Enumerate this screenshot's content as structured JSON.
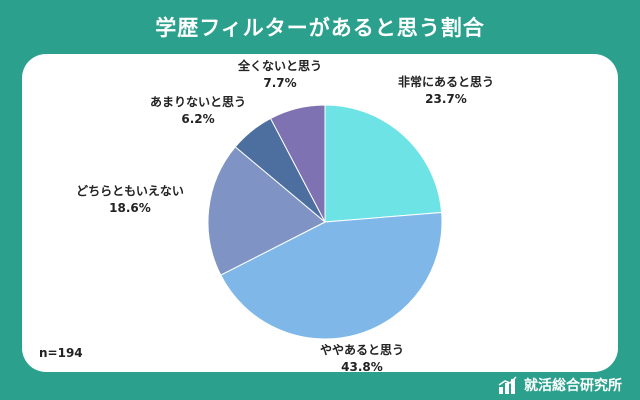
{
  "title": "学歴フィルターがあると思う割合",
  "sample_size_label": "n=194",
  "footer_brand": "就活総合研究所",
  "chart_data": {
    "type": "pie",
    "title": "学歴フィルターがあると思う割合",
    "start": "12 o'clock",
    "direction": "clockwise",
    "slices": [
      {
        "label": "非常にあると思う",
        "value": 23.7,
        "display": "23.7%",
        "color": "#6de3e6"
      },
      {
        "label": "ややあると思う",
        "value": 43.8,
        "display": "43.8%",
        "color": "#7fb8e8"
      },
      {
        "label": "どちらともいえない",
        "value": 18.6,
        "display": "18.6%",
        "color": "#7f94c4"
      },
      {
        "label": "あまりないと思う",
        "value": 6.2,
        "display": "6.2%",
        "color": "#4d6fa0"
      },
      {
        "label": "全くないと思う",
        "value": 7.7,
        "display": "7.7%",
        "color": "#7f72b2"
      }
    ]
  }
}
